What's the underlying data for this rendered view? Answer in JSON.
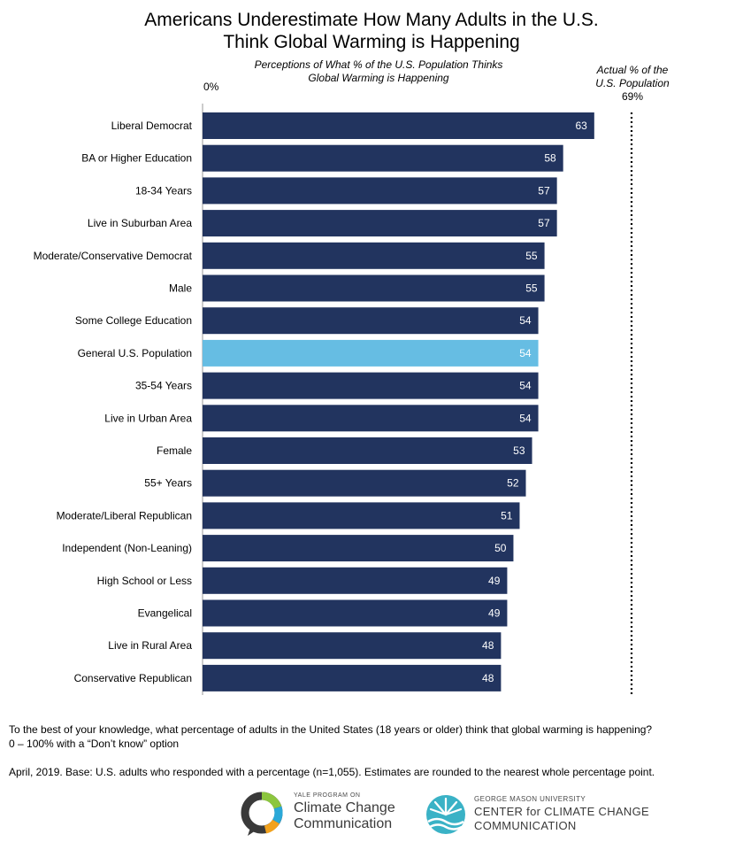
{
  "chart_data": {
    "type": "bar",
    "orientation": "horizontal",
    "title_line1": "Americans Underestimate How Many Adults in the U.S.",
    "title_line2": "Think Global Warming is Happening",
    "subtitle_line1": "Perceptions of What % of the U.S. Population Thinks",
    "subtitle_line2": "Global Warming is Happening",
    "axis_start_label": "0%",
    "reference": {
      "label_line1": "Actual % of the",
      "label_line2": "U.S. Population",
      "value_label": "69%",
      "value": 69
    },
    "xlim": [
      0,
      69
    ],
    "categories": [
      "Liberal Democrat",
      "BA or Higher Education",
      "18-34 Years",
      "Live in Suburban Area",
      "Moderate/Conservative Democrat",
      "Male",
      "Some College Education",
      "General U.S. Population",
      "35-54 Years",
      "Live in Urban Area",
      "Female",
      "55+ Years",
      "Moderate/Liberal Republican",
      "Independent (Non-Leaning)",
      "High School or Less",
      "Evangelical",
      "Live in Rural Area",
      "Conservative Republican"
    ],
    "values": [
      63,
      58,
      57,
      57,
      55,
      55,
      54,
      54,
      54,
      54,
      53,
      52,
      51,
      50,
      49,
      49,
      48,
      48
    ],
    "highlight_category": "General U.S. Population",
    "colors": {
      "bar": "#22345f",
      "highlight": "#66bde3",
      "label": "#ffffff"
    }
  },
  "footnote": {
    "question_line1": "To the best of your knowledge, what percentage of adults in the United States (18 years or older) think that global warming is happening?",
    "question_line2": "0 – 100% with a “Don’t know” option",
    "base": "April, 2019. Base: U.S. adults who responded with a percentage (n=1,055). Estimates are rounded to the nearest whole percentage point."
  },
  "logos": {
    "yale": {
      "small": "YALE PROGRAM ON",
      "line1": "Climate Change",
      "line2": "Communication"
    },
    "gmu": {
      "small": "GEORGE MASON UNIVERSITY",
      "line1": "CENTER for CLIMATE CHANGE",
      "line2": "COMMUNICATION"
    }
  }
}
